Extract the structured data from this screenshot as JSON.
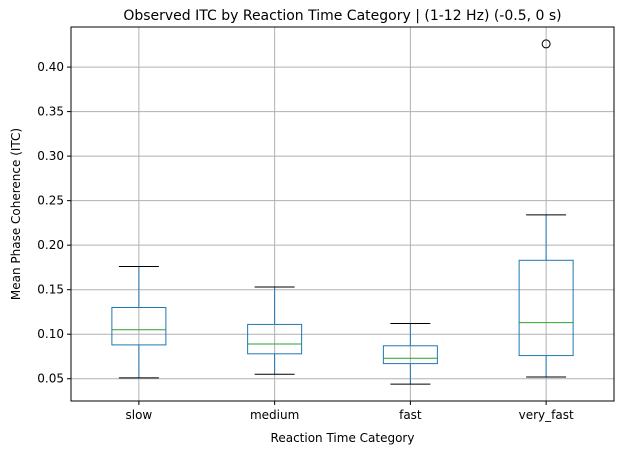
{
  "chart_data": {
    "type": "boxplot",
    "title": "Observed ITC by Reaction Time Category | (1-12 Hz) (-0.5, 0 s)",
    "xlabel": "Reaction Time Category",
    "ylabel": "Mean Phase Coherence (ITC)",
    "categories": [
      "slow",
      "medium",
      "fast",
      "very_fast"
    ],
    "ylim": [
      0.025,
      0.445
    ],
    "yticks": [
      0.05,
      0.1,
      0.15,
      0.2,
      0.25,
      0.3,
      0.35,
      0.4
    ],
    "ytick_labels": [
      "0.05",
      "0.10",
      "0.15",
      "0.20",
      "0.25",
      "0.30",
      "0.35",
      "0.40"
    ],
    "grid": true,
    "colors": {
      "box": "#1f77b4",
      "median": "#2ca02c",
      "whisker_cap": "#000000",
      "grid": "#b0b0b0",
      "axes": "#000000"
    },
    "boxes": [
      {
        "category": "slow",
        "whisker_low": 0.051,
        "q1": 0.088,
        "median": 0.105,
        "q3": 0.13,
        "whisker_high": 0.176,
        "outliers": []
      },
      {
        "category": "medium",
        "whisker_low": 0.055,
        "q1": 0.078,
        "median": 0.089,
        "q3": 0.111,
        "whisker_high": 0.153,
        "outliers": []
      },
      {
        "category": "fast",
        "whisker_low": 0.044,
        "q1": 0.067,
        "median": 0.073,
        "q3": 0.087,
        "whisker_high": 0.112,
        "outliers": []
      },
      {
        "category": "very_fast",
        "whisker_low": 0.052,
        "q1": 0.076,
        "median": 0.113,
        "q3": 0.183,
        "whisker_high": 0.234,
        "outliers": [
          0.426
        ]
      }
    ]
  }
}
